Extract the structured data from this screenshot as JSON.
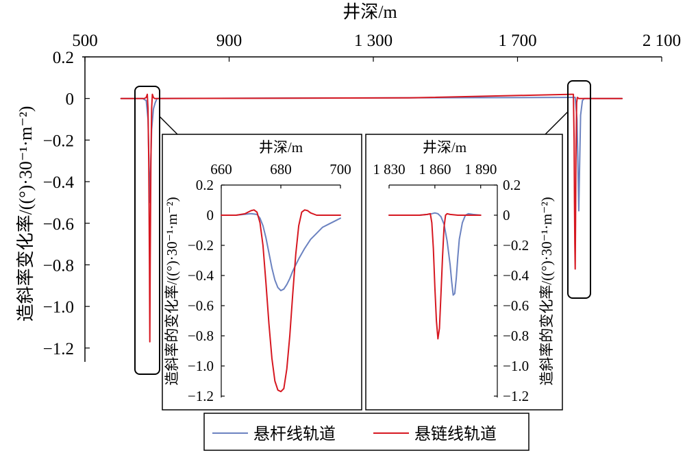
{
  "colors": {
    "series_blue": "#6b82c0",
    "series_red": "#d61720",
    "axis": "#000000",
    "background": "#ffffff"
  },
  "chart_data": [
    {
      "id": "main",
      "type": "line",
      "xlabel": "井深/m",
      "ylabel": "造斜率变化率/((°)·30⁻¹·m⁻²)",
      "x_axis_position": "top",
      "xlim": [
        500,
        2100
      ],
      "ylim": [
        -1.25,
        0.2
      ],
      "x_ticks": [
        500,
        900,
        1300,
        1700,
        2100
      ],
      "x_tick_labels": [
        "500",
        "900",
        "1 300",
        "1 700",
        "2 100"
      ],
      "y_ticks": [
        0.2,
        0,
        -0.2,
        -0.4,
        -0.6,
        -0.8,
        -1.0,
        -1.2
      ],
      "y_tick_labels": [
        "0.2",
        "0",
        "−0.2",
        "−0.4",
        "−0.6",
        "−0.8",
        "−1.0",
        "−1.2"
      ],
      "grid": false,
      "series": [
        {
          "name": "悬杆线轨道",
          "color": "#6b82c0",
          "x": [
            600,
            660,
            670,
            675,
            678,
            680,
            682,
            685,
            690,
            695,
            700,
            1840,
            1860,
            1865,
            1868,
            1870,
            1872,
            1875,
            1880,
            1885,
            1890,
            1900,
            1990
          ],
          "y": [
            0,
            0,
            -0.01,
            -0.1,
            -0.35,
            -0.5,
            -0.35,
            -0.15,
            -0.05,
            -0.02,
            0,
            0.005,
            0.005,
            -0.1,
            -0.35,
            -0.54,
            -0.35,
            -0.08,
            -0.01,
            0,
            0,
            0,
            0
          ]
        },
        {
          "name": "悬链线轨道",
          "color": "#d61720",
          "x": [
            600,
            665,
            670,
            673,
            675,
            677,
            679,
            680,
            681,
            683,
            685,
            687,
            690,
            693,
            700,
            1400,
            1850,
            1855,
            1857,
            1858,
            1859,
            1860,
            1861,
            1862,
            1864,
            1866,
            1870,
            1875,
            1990
          ],
          "y": [
            0,
            0,
            0.005,
            0.02,
            -0.05,
            -0.3,
            -0.8,
            -1.17,
            -0.8,
            -0.3,
            -0.05,
            0.02,
            0.005,
            0,
            0,
            0.003,
            0.02,
            0.02,
            -0.2,
            -0.5,
            -0.7,
            -0.82,
            -0.6,
            -0.3,
            -0.02,
            0.005,
            0,
            0,
            0
          ]
        }
      ],
      "legend_position": "bottom-center"
    },
    {
      "id": "inset-left",
      "type": "line",
      "xlabel": "井深/m",
      "ylabel": "造斜率的变化率/((°)·30⁻¹·m⁻²)",
      "x_axis_position": "top",
      "xlim": [
        660,
        700
      ],
      "ylim": [
        -1.2,
        0.2
      ],
      "x_ticks": [
        660,
        680,
        700
      ],
      "x_tick_labels": [
        "660",
        "680",
        "700"
      ],
      "y_ticks": [
        0.2,
        0,
        -0.2,
        -0.4,
        -0.6,
        -0.8,
        -1.0,
        -1.2
      ],
      "y_tick_labels": [
        "0.2",
        "0",
        "−0.2",
        "−0.4",
        "−0.6",
        "−0.8",
        "−1.0",
        "−1.2"
      ],
      "series": [
        {
          "name": "悬杆线轨道",
          "color": "#6b82c0",
          "x": [
            660,
            665,
            670,
            672,
            673,
            674,
            675,
            676,
            677,
            678,
            679,
            680,
            681,
            682,
            683,
            684,
            685,
            686,
            688,
            690,
            692,
            694,
            696,
            698,
            700
          ],
          "y": [
            0,
            0,
            0.01,
            0.005,
            -0.02,
            -0.07,
            -0.15,
            -0.25,
            -0.35,
            -0.43,
            -0.48,
            -0.5,
            -0.49,
            -0.46,
            -0.42,
            -0.37,
            -0.33,
            -0.29,
            -0.22,
            -0.16,
            -0.12,
            -0.08,
            -0.06,
            -0.04,
            -0.02
          ]
        },
        {
          "name": "悬链线轨道",
          "color": "#d61720",
          "x": [
            660,
            665,
            668,
            670,
            671,
            672,
            673,
            674,
            675,
            676,
            677,
            678,
            679,
            680,
            681,
            682,
            683,
            684,
            685,
            686,
            687,
            688,
            689,
            690,
            692,
            695,
            700
          ],
          "y": [
            0,
            0,
            0.01,
            0.03,
            0.035,
            0.02,
            -0.05,
            -0.2,
            -0.45,
            -0.72,
            -0.95,
            -1.1,
            -1.16,
            -1.17,
            -1.15,
            -1.02,
            -0.8,
            -0.52,
            -0.26,
            -0.07,
            0.02,
            0.035,
            0.03,
            0.015,
            0,
            0,
            0
          ]
        }
      ]
    },
    {
      "id": "inset-right",
      "type": "line",
      "xlabel": "井深/m",
      "ylabel": "造斜率的变化率/((°)·30⁻¹·m⁻²)",
      "x_axis_position": "top",
      "y_axis_position": "right",
      "xlim": [
        1830,
        1900
      ],
      "ylim": [
        -1.2,
        0.2
      ],
      "x_ticks": [
        1830,
        1860,
        1890
      ],
      "x_tick_labels": [
        "1 830",
        "1 860",
        "1 890"
      ],
      "y_ticks": [
        0.2,
        0,
        -0.2,
        -0.4,
        -0.6,
        -0.8,
        -1.0,
        -1.2
      ],
      "y_tick_labels": [
        "0.2",
        "0",
        "−0.2",
        "−0.4",
        "−0.6",
        "−0.8",
        "−1.0",
        "−1.2"
      ],
      "series": [
        {
          "name": "悬杆线轨道",
          "color": "#6b82c0",
          "x": [
            1830,
            1850,
            1855,
            1858,
            1860,
            1862,
            1864,
            1866,
            1868,
            1870,
            1871,
            1872,
            1873,
            1874,
            1875,
            1876,
            1878,
            1880,
            1882,
            1885,
            1890
          ],
          "y": [
            0,
            0,
            0.005,
            0.01,
            0.015,
            0.01,
            -0.01,
            -0.06,
            -0.17,
            -0.33,
            -0.44,
            -0.53,
            -0.52,
            -0.42,
            -0.28,
            -0.16,
            -0.05,
            0,
            0.01,
            0.005,
            0
          ]
        },
        {
          "name": "悬链线轨道",
          "color": "#d61720",
          "x": [
            1830,
            1850,
            1855,
            1857,
            1858,
            1859,
            1860,
            1861,
            1862,
            1863,
            1864,
            1865,
            1866,
            1867,
            1868,
            1870,
            1875,
            1890
          ],
          "y": [
            0,
            0,
            0.005,
            0.01,
            -0.05,
            -0.22,
            -0.48,
            -0.7,
            -0.82,
            -0.75,
            -0.52,
            -0.28,
            -0.08,
            0,
            0.01,
            0.005,
            0,
            0
          ]
        }
      ]
    }
  ],
  "legend": {
    "items": [
      {
        "label": "悬杆线轨道",
        "color": "#6b82c0"
      },
      {
        "label": "悬链线轨道",
        "color": "#d61720"
      }
    ]
  }
}
